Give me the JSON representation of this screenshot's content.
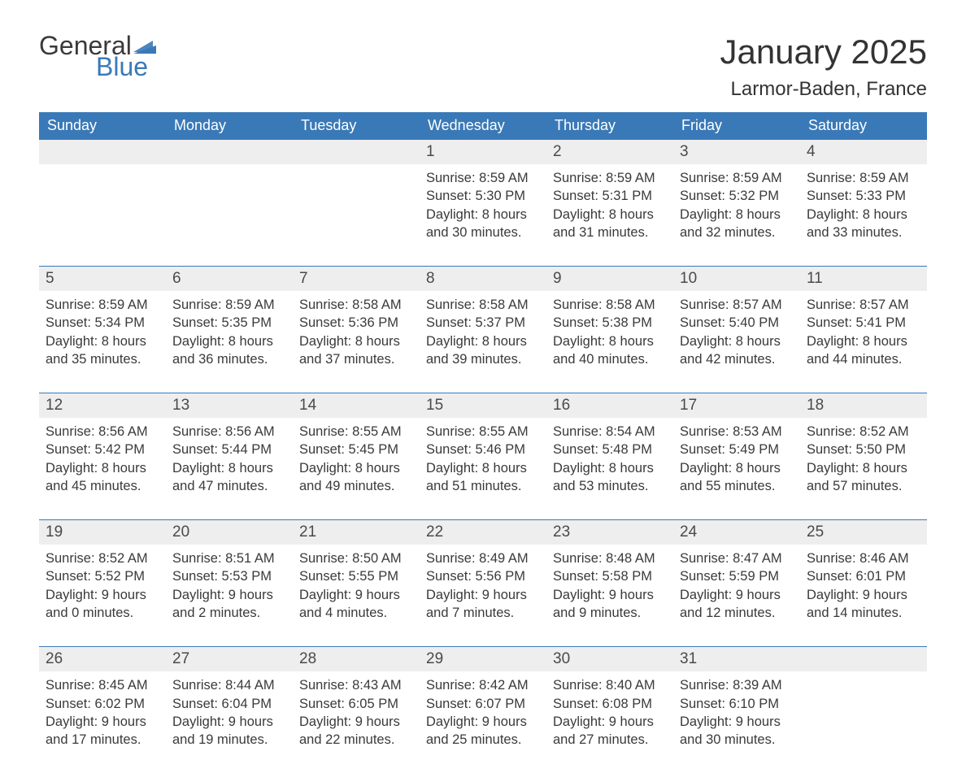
{
  "logo": {
    "text1": "General",
    "text2": "Blue",
    "flag_color": "#3a79b7"
  },
  "header": {
    "month_title": "January 2025",
    "location": "Larmor-Baden, France"
  },
  "colors": {
    "header_bg": "#3a79b7",
    "header_text": "#ffffff",
    "row_stripe": "#eeeeee",
    "border": "#3a79b7",
    "body_text": "#3a3a3a"
  },
  "typography": {
    "month_title_fontsize": 42,
    "location_fontsize": 24,
    "header_cell_fontsize": 18,
    "daynum_fontsize": 19,
    "daybody_fontsize": 16.5,
    "font_family": "Arial"
  },
  "columns": [
    "Sunday",
    "Monday",
    "Tuesday",
    "Wednesday",
    "Thursday",
    "Friday",
    "Saturday"
  ],
  "weeks": [
    [
      null,
      null,
      null,
      {
        "n": "1",
        "sr": "8:59 AM",
        "ss": "5:30 PM",
        "dh": "8",
        "dm": "30"
      },
      {
        "n": "2",
        "sr": "8:59 AM",
        "ss": "5:31 PM",
        "dh": "8",
        "dm": "31"
      },
      {
        "n": "3",
        "sr": "8:59 AM",
        "ss": "5:32 PM",
        "dh": "8",
        "dm": "32"
      },
      {
        "n": "4",
        "sr": "8:59 AM",
        "ss": "5:33 PM",
        "dh": "8",
        "dm": "33"
      }
    ],
    [
      {
        "n": "5",
        "sr": "8:59 AM",
        "ss": "5:34 PM",
        "dh": "8",
        "dm": "35"
      },
      {
        "n": "6",
        "sr": "8:59 AM",
        "ss": "5:35 PM",
        "dh": "8",
        "dm": "36"
      },
      {
        "n": "7",
        "sr": "8:58 AM",
        "ss": "5:36 PM",
        "dh": "8",
        "dm": "37"
      },
      {
        "n": "8",
        "sr": "8:58 AM",
        "ss": "5:37 PM",
        "dh": "8",
        "dm": "39"
      },
      {
        "n": "9",
        "sr": "8:58 AM",
        "ss": "5:38 PM",
        "dh": "8",
        "dm": "40"
      },
      {
        "n": "10",
        "sr": "8:57 AM",
        "ss": "5:40 PM",
        "dh": "8",
        "dm": "42"
      },
      {
        "n": "11",
        "sr": "8:57 AM",
        "ss": "5:41 PM",
        "dh": "8",
        "dm": "44"
      }
    ],
    [
      {
        "n": "12",
        "sr": "8:56 AM",
        "ss": "5:42 PM",
        "dh": "8",
        "dm": "45"
      },
      {
        "n": "13",
        "sr": "8:56 AM",
        "ss": "5:44 PM",
        "dh": "8",
        "dm": "47"
      },
      {
        "n": "14",
        "sr": "8:55 AM",
        "ss": "5:45 PM",
        "dh": "8",
        "dm": "49"
      },
      {
        "n": "15",
        "sr": "8:55 AM",
        "ss": "5:46 PM",
        "dh": "8",
        "dm": "51"
      },
      {
        "n": "16",
        "sr": "8:54 AM",
        "ss": "5:48 PM",
        "dh": "8",
        "dm": "53"
      },
      {
        "n": "17",
        "sr": "8:53 AM",
        "ss": "5:49 PM",
        "dh": "8",
        "dm": "55"
      },
      {
        "n": "18",
        "sr": "8:52 AM",
        "ss": "5:50 PM",
        "dh": "8",
        "dm": "57"
      }
    ],
    [
      {
        "n": "19",
        "sr": "8:52 AM",
        "ss": "5:52 PM",
        "dh": "9",
        "dm": "0"
      },
      {
        "n": "20",
        "sr": "8:51 AM",
        "ss": "5:53 PM",
        "dh": "9",
        "dm": "2"
      },
      {
        "n": "21",
        "sr": "8:50 AM",
        "ss": "5:55 PM",
        "dh": "9",
        "dm": "4"
      },
      {
        "n": "22",
        "sr": "8:49 AM",
        "ss": "5:56 PM",
        "dh": "9",
        "dm": "7"
      },
      {
        "n": "23",
        "sr": "8:48 AM",
        "ss": "5:58 PM",
        "dh": "9",
        "dm": "9"
      },
      {
        "n": "24",
        "sr": "8:47 AM",
        "ss": "5:59 PM",
        "dh": "9",
        "dm": "12"
      },
      {
        "n": "25",
        "sr": "8:46 AM",
        "ss": "6:01 PM",
        "dh": "9",
        "dm": "14"
      }
    ],
    [
      {
        "n": "26",
        "sr": "8:45 AM",
        "ss": "6:02 PM",
        "dh": "9",
        "dm": "17"
      },
      {
        "n": "27",
        "sr": "8:44 AM",
        "ss": "6:04 PM",
        "dh": "9",
        "dm": "19"
      },
      {
        "n": "28",
        "sr": "8:43 AM",
        "ss": "6:05 PM",
        "dh": "9",
        "dm": "22"
      },
      {
        "n": "29",
        "sr": "8:42 AM",
        "ss": "6:07 PM",
        "dh": "9",
        "dm": "25"
      },
      {
        "n": "30",
        "sr": "8:40 AM",
        "ss": "6:08 PM",
        "dh": "9",
        "dm": "27"
      },
      {
        "n": "31",
        "sr": "8:39 AM",
        "ss": "6:10 PM",
        "dh": "9",
        "dm": "30"
      },
      null
    ]
  ],
  "labels": {
    "sunrise": "Sunrise:",
    "sunset": "Sunset:",
    "daylight_prefix": "Daylight:",
    "hours_word": "hours",
    "and_word": "and",
    "minutes_word": "minutes."
  }
}
